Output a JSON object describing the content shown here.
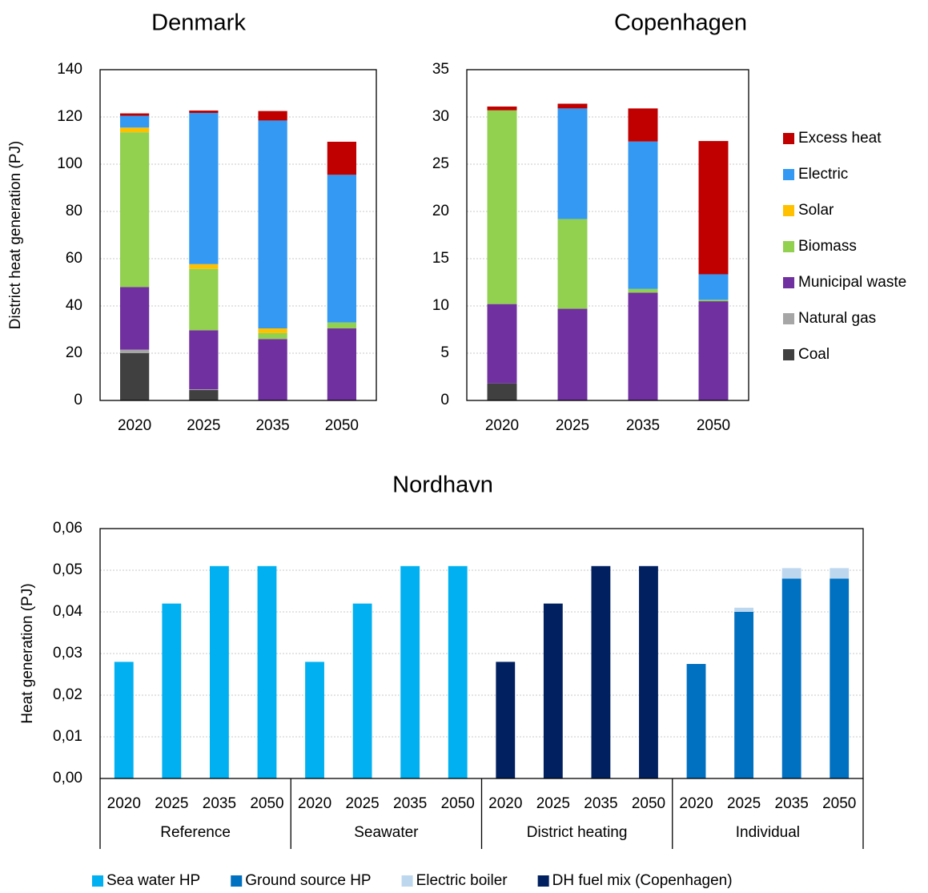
{
  "chart_data": [
    {
      "type": "stacked-bar",
      "title": "Denmark",
      "ylabel": "District heat generation (PJ)",
      "categories": [
        "2020",
        "2025",
        "2035",
        "2050"
      ],
      "ylim": [
        0,
        140
      ],
      "yticks": [
        0,
        20,
        40,
        60,
        80,
        100,
        120,
        140
      ],
      "grid": true,
      "series": [
        {
          "color": "#404040",
          "values": [
            20,
            4.4,
            0,
            0
          ]
        },
        {
          "color": "#a6a6a6",
          "values": [
            1.5,
            0.3,
            0,
            0
          ]
        },
        {
          "color": "#7030a0",
          "values": [
            26.5,
            25,
            26,
            30.5
          ]
        },
        {
          "color": "#92d050",
          "values": [
            65.5,
            26,
            2.5,
            2.5
          ]
        },
        {
          "color": "#ffc000",
          "values": [
            2,
            2,
            2,
            0
          ]
        },
        {
          "color": "#3399f3",
          "values": [
            5,
            64,
            88,
            62.5
          ]
        },
        {
          "color": "#c00000",
          "values": [
            1,
            1,
            4,
            14
          ]
        }
      ]
    },
    {
      "type": "stacked-bar",
      "title": "Copenhagen",
      "legend": "right",
      "categories": [
        "2020",
        "2025",
        "2035",
        "2050"
      ],
      "ylim": [
        0,
        35
      ],
      "yticks": [
        0,
        5,
        10,
        15,
        20,
        25,
        30,
        35
      ],
      "grid": true,
      "series": [
        {
          "name": "Coal",
          "color": "#404040",
          "values": [
            1.8,
            0,
            0,
            0
          ]
        },
        {
          "name": "Natural gas",
          "color": "#a6a6a6",
          "values": [
            0,
            0,
            0,
            0
          ]
        },
        {
          "name": "Municipal waste",
          "color": "#7030a0",
          "values": [
            8.4,
            9.7,
            11.4,
            10.5
          ]
        },
        {
          "name": "Biomass",
          "color": "#92d050",
          "values": [
            20.5,
            9.5,
            0.4,
            0.15
          ]
        },
        {
          "name": "Solar",
          "color": "#ffc000",
          "values": [
            0,
            0,
            0,
            0
          ]
        },
        {
          "name": "Electric",
          "color": "#3399f3",
          "values": [
            0,
            11.7,
            15.6,
            2.7
          ]
        },
        {
          "name": "Excess heat",
          "color": "#c00000",
          "values": [
            0.4,
            0.5,
            3.5,
            14.1
          ]
        }
      ]
    },
    {
      "type": "stacked-bar",
      "title": "Nordhavn",
      "ylabel": "Heat generation (PJ)",
      "legend": "bottom",
      "categories": [
        "2020",
        "2025",
        "2035",
        "2050",
        "2020",
        "2025",
        "2035",
        "2050",
        "2020",
        "2025",
        "2035",
        "2050",
        "2020",
        "2025",
        "2035",
        "2050"
      ],
      "groups": [
        "Reference",
        "Seawater",
        "District heating",
        "Individual"
      ],
      "ylim": [
        0,
        0.06
      ],
      "yticks": [
        {
          "value": 0,
          "label": "0,00"
        },
        {
          "value": 0.01,
          "label": "0,01"
        },
        {
          "value": 0.02,
          "label": "0,02"
        },
        {
          "value": 0.03,
          "label": "0,03"
        },
        {
          "value": 0.04,
          "label": "0,04"
        },
        {
          "value": 0.05,
          "label": "0,05"
        },
        {
          "value": 0.06,
          "label": "0,06"
        }
      ],
      "grid": true,
      "series": [
        {
          "name": "Sea water HP",
          "color": "#00b0f0",
          "values": [
            0.028,
            0.042,
            0.051,
            0.051,
            0.028,
            0.042,
            0.051,
            0.051,
            null,
            null,
            null,
            null,
            null,
            null,
            null,
            null
          ]
        },
        {
          "name": "Ground source HP",
          "color": "#0070c0",
          "values": [
            null,
            null,
            null,
            null,
            null,
            null,
            null,
            null,
            null,
            null,
            null,
            null,
            0.0275,
            0.04,
            0.048,
            0.048
          ]
        },
        {
          "name": "Electric boiler",
          "color": "#bdd7ee",
          "values": [
            null,
            null,
            null,
            null,
            null,
            null,
            null,
            null,
            null,
            null,
            null,
            null,
            null,
            0.001,
            0.0025,
            0.0025
          ]
        },
        {
          "name": "DH fuel mix (Copenhagen)",
          "color": "#002060",
          "values": [
            null,
            null,
            null,
            null,
            null,
            null,
            null,
            null,
            0.028,
            0.042,
            0.051,
            0.051,
            null,
            null,
            null,
            null
          ]
        }
      ]
    }
  ]
}
